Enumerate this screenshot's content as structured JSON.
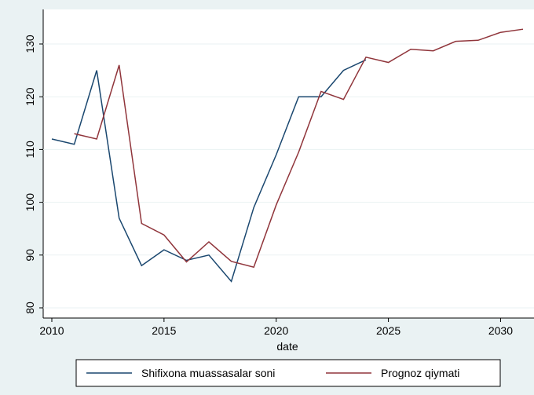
{
  "chart_data": {
    "type": "line",
    "x": [
      2010,
      2011,
      2012,
      2013,
      2014,
      2015,
      2016,
      2017,
      2018,
      2019,
      2020,
      2021,
      2022,
      2023,
      2024,
      2025,
      2026,
      2027,
      2028,
      2029,
      2030,
      2031
    ],
    "series": [
      {
        "name": "Shifixona muassasalar soni",
        "color": "#1a476f",
        "values": [
          112,
          111,
          125,
          97,
          88,
          91,
          89,
          90,
          85,
          99,
          109,
          120,
          120,
          125,
          127,
          null,
          null,
          null,
          null,
          null,
          null,
          null
        ]
      },
      {
        "name": "Prognoz qiymati",
        "color": "#90353b",
        "values": [
          null,
          113,
          112,
          126,
          96,
          93.8,
          88.7,
          92.5,
          88.8,
          87.7,
          99.5,
          109.5,
          121,
          119.5,
          127.5,
          126.5,
          129,
          128.7,
          130.5,
          130.7,
          132.2,
          132.8
        ]
      }
    ],
    "xlabel": "date",
    "xlim": [
      2010,
      2031
    ],
    "xticks": [
      2010,
      2015,
      2020,
      2025,
      2030
    ],
    "ylim": [
      80,
      130
    ],
    "yticks": [
      80,
      90,
      100,
      110,
      120,
      130
    ],
    "grid": true,
    "legend": "bottom"
  }
}
